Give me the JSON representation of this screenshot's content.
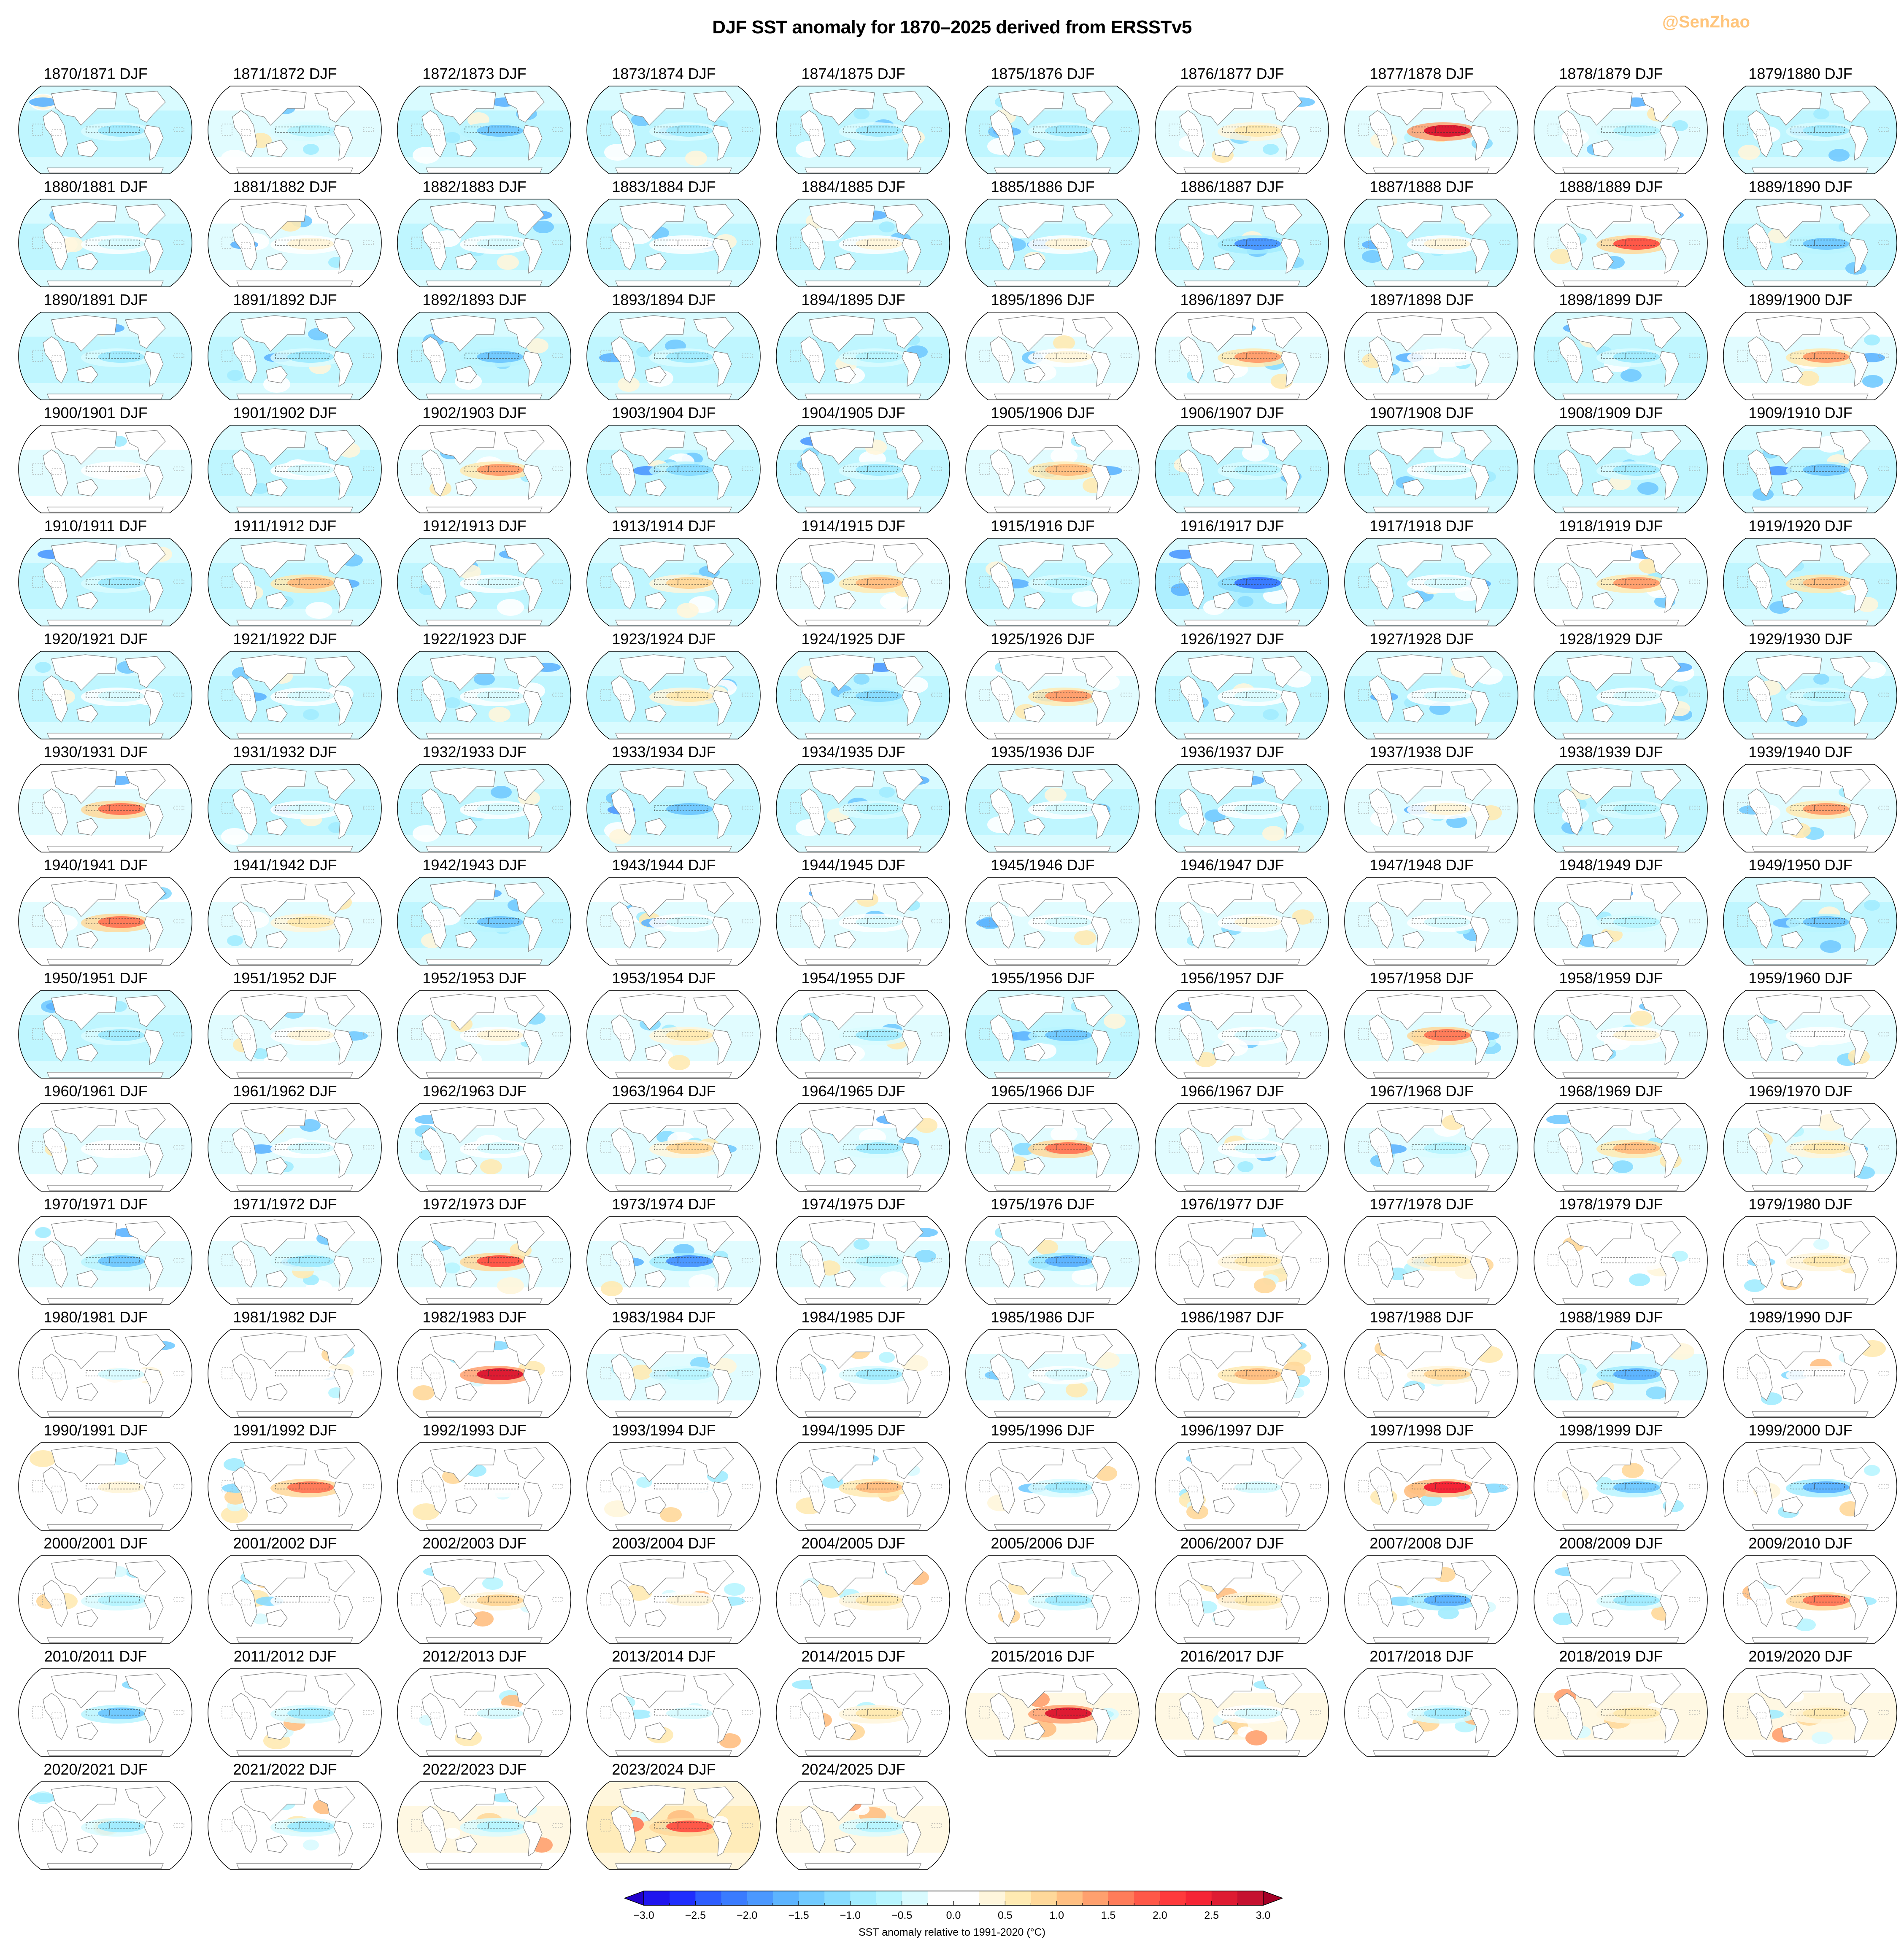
{
  "title": "DJF SST anomaly for 1870–2025 derived from ERSSTv5",
  "watermark": "@SenZhao",
  "colorbar": {
    "label": "SST anomaly relative to 1991-2020 (°C)",
    "ticks": [
      "−3.0",
      "−2.5",
      "−2.0",
      "−1.5",
      "−1.0",
      "−0.5",
      "0.0",
      "0.5",
      "1.0",
      "1.5",
      "2.0",
      "2.5",
      "3.0"
    ],
    "under_color": "#2200cc",
    "over_color": "#a50026",
    "colors": [
      "#1f14ee",
      "#1f2efe",
      "#2e5dff",
      "#3a7bff",
      "#4b98ff",
      "#5db4ff",
      "#72caff",
      "#88dcff",
      "#a2ecff",
      "#b8f5ff",
      "#d9fbff",
      "#ffffff",
      "#ffffff",
      "#fff6dc",
      "#ffeab2",
      "#ffd89a",
      "#ffbf82",
      "#ffa06e",
      "#ff7c5a",
      "#ff5848",
      "#ff3a3c",
      "#f52535",
      "#de1b32",
      "#c51230"
    ]
  },
  "chart_data": {
    "type": "heatmap",
    "title": "DJF SST anomaly for 1870–2025 derived from ERSSTv5",
    "description": "Small-multiples of global SST anomaly maps (Robinson-like projection, Pacific-centred), one per DJF season, 10 columns x 16 rows; dashed boxes mark Nino regions and Indian Ocean dipole boxes.",
    "colorbar_label": "SST anomaly relative to 1991-2020 (°C)",
    "vmin": -3.0,
    "vmax": 3.0,
    "step": 0.25,
    "extend": "both",
    "panel_value_keys": [
      "label",
      "background_mean_estimate",
      "nino34_box_estimate"
    ],
    "panels": [
      [
        "1870/1871 DJF",
        -0.6,
        -0.9
      ],
      [
        "1871/1872 DJF",
        -0.5,
        -0.6
      ],
      [
        "1872/1873 DJF",
        -0.6,
        -1.4
      ],
      [
        "1873/1874 DJF",
        -0.6,
        -1.0
      ],
      [
        "1874/1875 DJF",
        -0.6,
        -0.8
      ],
      [
        "1875/1876 DJF",
        -0.6,
        -1.0
      ],
      [
        "1876/1877 DJF",
        -0.4,
        0.6
      ],
      [
        "1877/1878 DJF",
        -0.3,
        2.6
      ],
      [
        "1878/1879 DJF",
        -0.5,
        -0.6
      ],
      [
        "1879/1880 DJF",
        -0.6,
        -1.0
      ],
      [
        "1880/1881 DJF",
        -0.6,
        -0.5
      ],
      [
        "1881/1882 DJF",
        -0.5,
        0.3
      ],
      [
        "1882/1883 DJF",
        -0.6,
        -0.4
      ],
      [
        "1883/1884 DJF",
        -0.6,
        0.2
      ],
      [
        "1884/1885 DJF",
        -0.6,
        0.3
      ],
      [
        "1885/1886 DJF",
        -0.6,
        0.3
      ],
      [
        "1886/1887 DJF",
        -0.7,
        -1.9
      ],
      [
        "1887/1888 DJF",
        -0.6,
        0.3
      ],
      [
        "1888/1889 DJF",
        -0.5,
        1.9
      ],
      [
        "1889/1890 DJF",
        -0.6,
        -1.4
      ],
      [
        "1890/1891 DJF",
        -0.6,
        -0.9
      ],
      [
        "1891/1892 DJF",
        -0.6,
        -0.8
      ],
      [
        "1892/1893 DJF",
        -0.7,
        -1.3
      ],
      [
        "1893/1894 DJF",
        -0.6,
        -1.0
      ],
      [
        "1894/1895 DJF",
        -0.6,
        -0.6
      ],
      [
        "1895/1896 DJF",
        -0.5,
        0.3
      ],
      [
        "1896/1897 DJF",
        -0.4,
        1.3
      ],
      [
        "1897/1898 DJF",
        -0.5,
        0.2
      ],
      [
        "1898/1899 DJF",
        -0.6,
        -1.0
      ],
      [
        "1899/1900 DJF",
        -0.5,
        1.3
      ],
      [
        "1900/1901 DJF",
        -0.5,
        0.0
      ],
      [
        "1901/1902 DJF",
        -0.6,
        -0.5
      ],
      [
        "1902/1903 DJF",
        -0.5,
        1.3
      ],
      [
        "1903/1904 DJF",
        -0.7,
        -1.1
      ],
      [
        "1904/1905 DJF",
        -0.7,
        -1.0
      ],
      [
        "1905/1906 DJF",
        -0.5,
        1.0
      ],
      [
        "1906/1907 DJF",
        -0.7,
        -0.6
      ],
      [
        "1907/1908 DJF",
        -0.6,
        -0.4
      ],
      [
        "1908/1909 DJF",
        -0.7,
        -1.0
      ],
      [
        "1909/1910 DJF",
        -0.7,
        -1.3
      ],
      [
        "1910/1911 DJF",
        -0.7,
        -1.0
      ],
      [
        "1911/1912 DJF",
        -0.6,
        1.2
      ],
      [
        "1912/1913 DJF",
        -0.6,
        -0.3
      ],
      [
        "1913/1914 DJF",
        -0.6,
        0.8
      ],
      [
        "1914/1915 DJF",
        -0.5,
        1.2
      ],
      [
        "1915/1916 DJF",
        -0.6,
        -0.6
      ],
      [
        "1916/1917 DJF",
        -0.8,
        -2.2
      ],
      [
        "1917/1918 DJF",
        -0.6,
        -0.5
      ],
      [
        "1918/1919 DJF",
        -0.5,
        1.3
      ],
      [
        "1919/1920 DJF",
        -0.6,
        1.0
      ],
      [
        "1920/1921 DJF",
        -0.6,
        -0.4
      ],
      [
        "1921/1922 DJF",
        -0.6,
        -0.4
      ],
      [
        "1922/1923 DJF",
        -0.6,
        -0.5
      ],
      [
        "1923/1924 DJF",
        -0.6,
        0.7
      ],
      [
        "1924/1925 DJF",
        -0.7,
        -1.2
      ],
      [
        "1925/1926 DJF",
        -0.5,
        1.3
      ],
      [
        "1926/1927 DJF",
        -0.6,
        -0.5
      ],
      [
        "1927/1928 DJF",
        -0.6,
        -0.3
      ],
      [
        "1928/1929 DJF",
        -0.6,
        -0.5
      ],
      [
        "1929/1930 DJF",
        -0.7,
        -0.6
      ],
      [
        "1930/1931 DJF",
        -0.5,
        1.5
      ],
      [
        "1931/1932 DJF",
        -0.6,
        -0.3
      ],
      [
        "1932/1933 DJF",
        -0.6,
        -0.3
      ],
      [
        "1933/1934 DJF",
        -0.7,
        -1.5
      ],
      [
        "1934/1935 DJF",
        -0.6,
        -0.6
      ],
      [
        "1935/1936 DJF",
        -0.6,
        -0.3
      ],
      [
        "1936/1937 DJF",
        -0.6,
        -0.3
      ],
      [
        "1937/1938 DJF",
        -0.5,
        0.3
      ],
      [
        "1938/1939 DJF",
        -0.6,
        -0.7
      ],
      [
        "1939/1940 DJF",
        -0.4,
        1.3
      ],
      [
        "1940/1941 DJF",
        -0.4,
        1.6
      ],
      [
        "1941/1942 DJF",
        -0.4,
        0.6
      ],
      [
        "1942/1943 DJF",
        -0.6,
        -1.5
      ],
      [
        "1943/1944 DJF",
        -0.5,
        -0.5
      ],
      [
        "1944/1945 DJF",
        -0.5,
        -0.5
      ],
      [
        "1945/1946 DJF",
        -0.5,
        -0.3
      ],
      [
        "1946/1947 DJF",
        -0.4,
        0.3
      ],
      [
        "1947/1948 DJF",
        -0.5,
        -0.3
      ],
      [
        "1948/1949 DJF",
        -0.5,
        -0.6
      ],
      [
        "1949/1950 DJF",
        -0.6,
        -1.4
      ],
      [
        "1950/1951 DJF",
        -0.6,
        -1.0
      ],
      [
        "1951/1952 DJF",
        -0.4,
        0.4
      ],
      [
        "1952/1953 DJF",
        -0.4,
        0.3
      ],
      [
        "1953/1954 DJF",
        -0.4,
        0.5
      ],
      [
        "1954/1955 DJF",
        -0.5,
        -0.8
      ],
      [
        "1955/1956 DJF",
        -0.6,
        -1.3
      ],
      [
        "1956/1957 DJF",
        -0.5,
        -0.5
      ],
      [
        "1957/1958 DJF",
        -0.3,
        1.5
      ],
      [
        "1958/1959 DJF",
        -0.4,
        0.4
      ],
      [
        "1959/1960 DJF",
        -0.4,
        -0.2
      ],
      [
        "1960/1961 DJF",
        -0.4,
        -0.2
      ],
      [
        "1961/1962 DJF",
        -0.5,
        -0.3
      ],
      [
        "1962/1963 DJF",
        -0.4,
        -0.5
      ],
      [
        "1963/1964 DJF",
        -0.4,
        0.9
      ],
      [
        "1964/1965 DJF",
        -0.5,
        -0.8
      ],
      [
        "1965/1966 DJF",
        -0.4,
        1.6
      ],
      [
        "1966/1967 DJF",
        -0.5,
        -0.4
      ],
      [
        "1967/1968 DJF",
        -0.5,
        -0.6
      ],
      [
        "1968/1969 DJF",
        -0.4,
        1.0
      ],
      [
        "1969/1970 DJF",
        -0.3,
        0.5
      ],
      [
        "1970/1971 DJF",
        -0.5,
        -1.3
      ],
      [
        "1971/1972 DJF",
        -0.5,
        -0.8
      ],
      [
        "1972/1973 DJF",
        -0.3,
        1.9
      ],
      [
        "1973/1974 DJF",
        -0.5,
        -1.9
      ],
      [
        "1974/1975 DJF",
        -0.4,
        -0.6
      ],
      [
        "1975/1976 DJF",
        -0.5,
        -1.6
      ],
      [
        "1976/1977 DJF",
        -0.1,
        0.7
      ],
      [
        "1977/1978 DJF",
        -0.2,
        0.7
      ],
      [
        "1978/1979 DJF",
        -0.2,
        0.1
      ],
      [
        "1979/1980 DJF",
        -0.1,
        0.6
      ],
      [
        "1980/1981 DJF",
        -0.2,
        -0.3
      ],
      [
        "1981/1982 DJF",
        -0.2,
        -0.1
      ],
      [
        "1982/1983 DJF",
        -0.1,
        2.6
      ],
      [
        "1983/1984 DJF",
        -0.3,
        -0.6
      ],
      [
        "1984/1985 DJF",
        -0.2,
        -0.9
      ],
      [
        "1985/1986 DJF",
        -0.3,
        -0.4
      ],
      [
        "1986/1987 DJF",
        -0.1,
        1.2
      ],
      [
        "1987/1988 DJF",
        -0.1,
        0.8
      ],
      [
        "1988/1989 DJF",
        -0.3,
        -1.6
      ],
      [
        "1989/1990 DJF",
        0.0,
        0.1
      ],
      [
        "1990/1991 DJF",
        -0.1,
        0.4
      ],
      [
        "1991/1992 DJF",
        -0.1,
        1.7
      ],
      [
        "1992/1993 DJF",
        -0.1,
        0.2
      ],
      [
        "1993/1994 DJF",
        -0.2,
        0.1
      ],
      [
        "1994/1995 DJF",
        -0.1,
        1.0
      ],
      [
        "1995/1996 DJF",
        -0.2,
        -0.9
      ],
      [
        "1996/1997 DJF",
        -0.1,
        -0.5
      ],
      [
        "1997/1998 DJF",
        0.0,
        2.4
      ],
      [
        "1998/1999 DJF",
        -0.2,
        -1.5
      ],
      [
        "1999/2000 DJF",
        -0.2,
        -1.7
      ],
      [
        "2000/2001 DJF",
        -0.1,
        -0.7
      ],
      [
        "2001/2002 DJF",
        -0.1,
        -0.1
      ],
      [
        "2002/2003 DJF",
        0.1,
        0.9
      ],
      [
        "2003/2004 DJF",
        0.1,
        0.4
      ],
      [
        "2004/2005 DJF",
        0.1,
        0.6
      ],
      [
        "2005/2006 DJF",
        -0.1,
        -0.8
      ],
      [
        "2006/2007 DJF",
        0.1,
        0.7
      ],
      [
        "2007/2008 DJF",
        -0.1,
        -1.6
      ],
      [
        "2008/2009 DJF",
        -0.1,
        -0.8
      ],
      [
        "2009/2010 DJF",
        0.1,
        1.5
      ],
      [
        "2010/2011 DJF",
        0.0,
        -1.4
      ],
      [
        "2011/2012 DJF",
        0.0,
        -0.9
      ],
      [
        "2012/2013 DJF",
        0.1,
        -0.3
      ],
      [
        "2013/2014 DJF",
        0.1,
        -0.4
      ],
      [
        "2014/2015 DJF",
        0.2,
        0.6
      ],
      [
        "2015/2016 DJF",
        0.4,
        2.6
      ],
      [
        "2016/2017 DJF",
        0.3,
        -0.3
      ],
      [
        "2017/2018 DJF",
        0.2,
        -0.9
      ],
      [
        "2018/2019 DJF",
        0.3,
        0.7
      ],
      [
        "2019/2020 DJF",
        0.3,
        0.5
      ],
      [
        "2020/2021 DJF",
        0.1,
        -1.0
      ],
      [
        "2021/2022 DJF",
        0.1,
        -0.9
      ],
      [
        "2022/2023 DJF",
        0.3,
        -0.6
      ],
      [
        "2023/2024 DJF",
        0.5,
        1.8
      ],
      [
        "2024/2025 DJF",
        0.4,
        -0.6
      ]
    ]
  }
}
